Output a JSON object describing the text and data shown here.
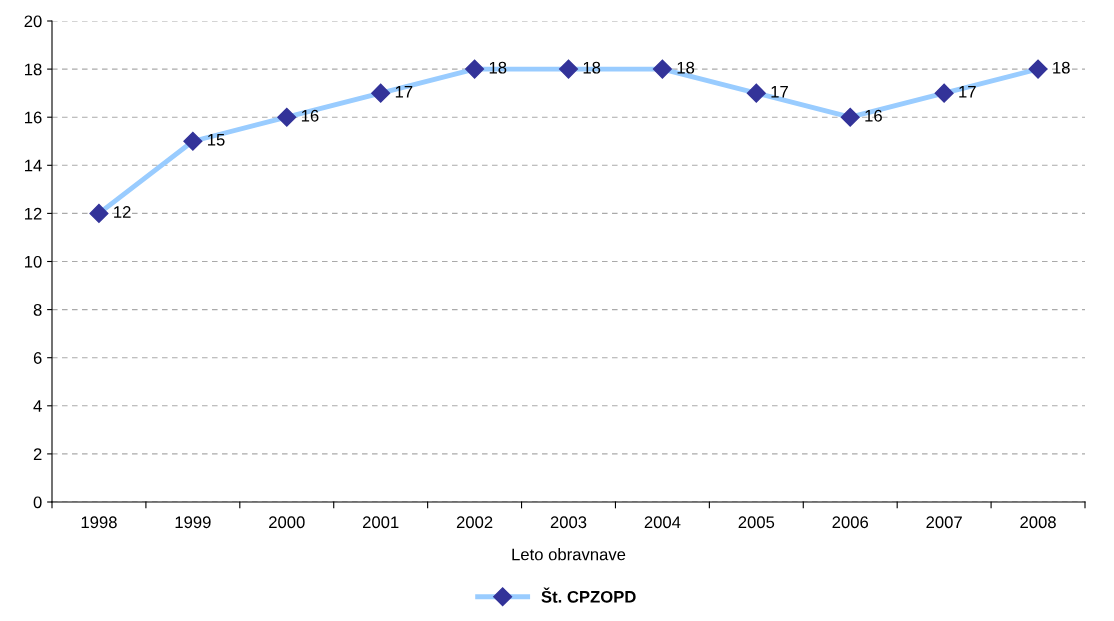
{
  "chart_data": {
    "type": "line",
    "xlabel": "Leto obravnave",
    "categories": [
      "1998",
      "1999",
      "2000",
      "2001",
      "2002",
      "2003",
      "2004",
      "2005",
      "2006",
      "2007",
      "2008"
    ],
    "series": [
      {
        "name": "Št. CPZOPD",
        "color": "#99ccff",
        "values": [
          12,
          15,
          16,
          17,
          18,
          18,
          18,
          17,
          16,
          17,
          18
        ]
      }
    ],
    "ylim": [
      0,
      20
    ],
    "yticks": [
      0,
      2,
      4,
      6,
      8,
      10,
      12,
      14,
      16,
      18,
      20
    ],
    "grid": "y",
    "legend": "bottom",
    "marker": "diamond",
    "line_style": "solid",
    "data_labels": true
  }
}
